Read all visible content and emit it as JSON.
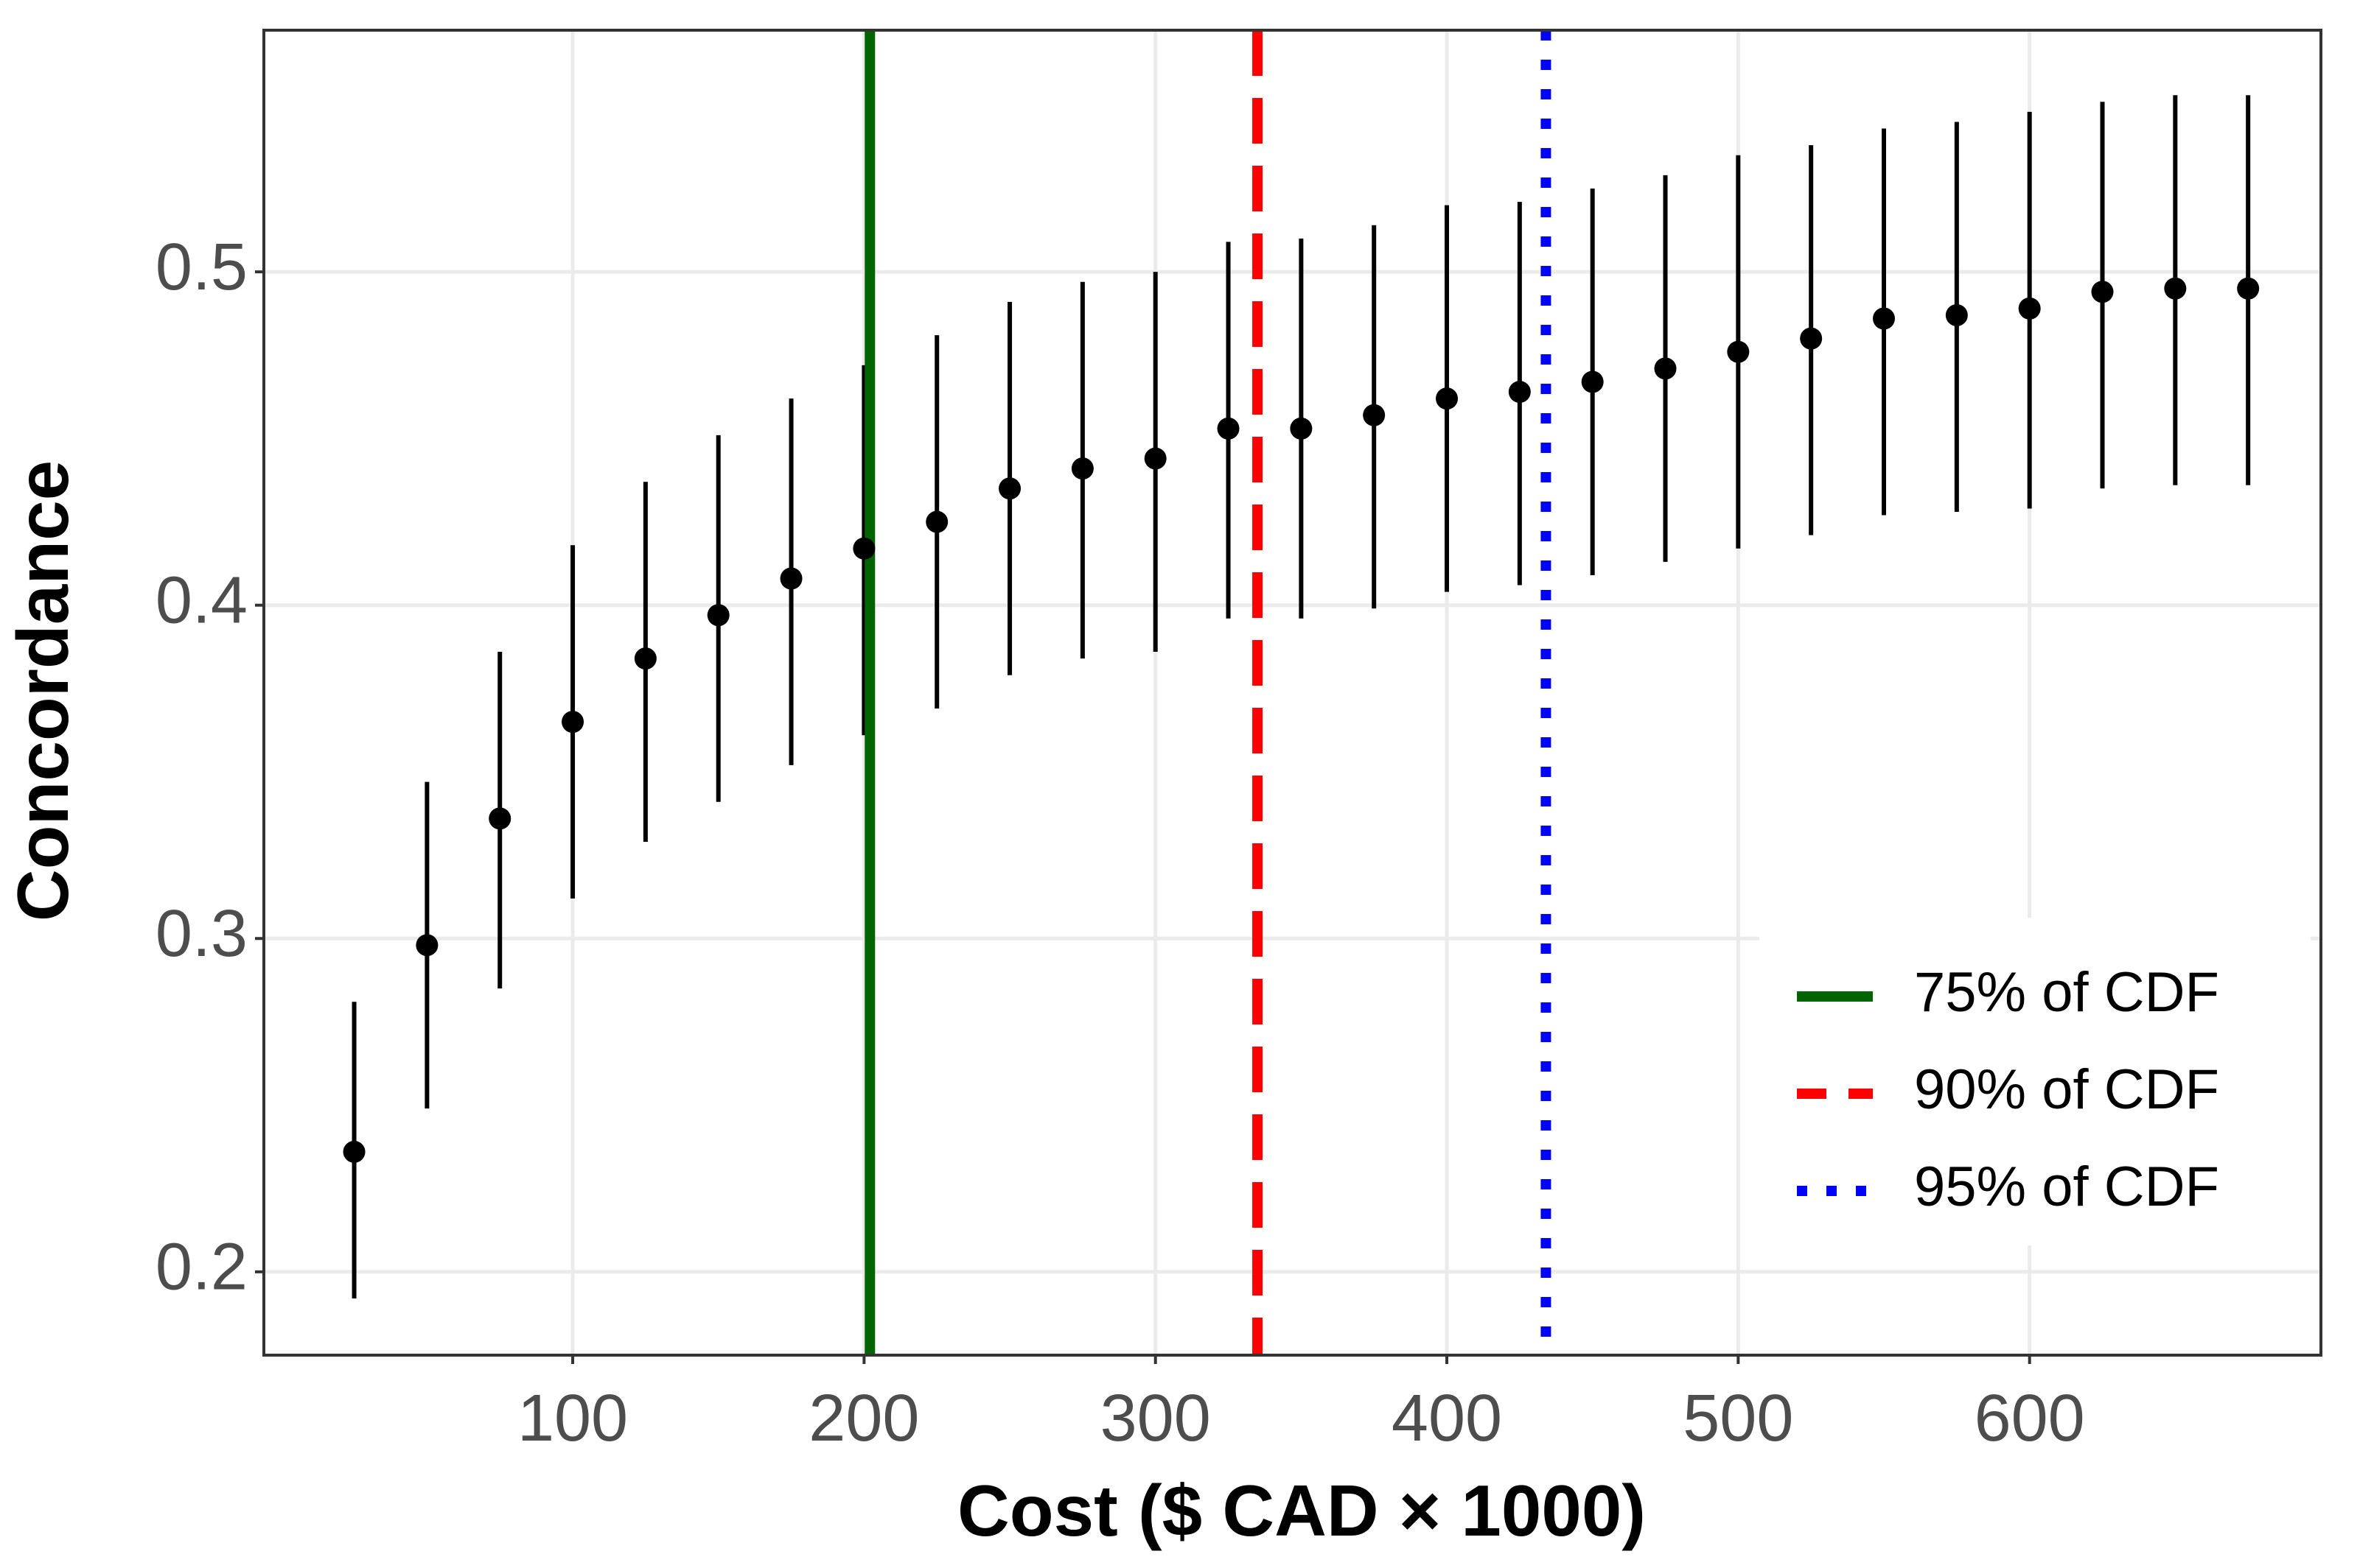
{
  "chart_data": {
    "type": "errorbar",
    "x_label": "Cost ($ CAD × 1000)",
    "y_label": "Concordance",
    "x": [
      25,
      50,
      75,
      100,
      125,
      150,
      175,
      200,
      225,
      250,
      275,
      300,
      325,
      350,
      375,
      400,
      425,
      450,
      475,
      500,
      525,
      550,
      575,
      600,
      625,
      650,
      675
    ],
    "values": [
      0.236,
      0.298,
      0.336,
      0.365,
      0.384,
      0.397,
      0.408,
      0.417,
      0.425,
      0.435,
      0.441,
      0.444,
      0.453,
      0.453,
      0.457,
      0.462,
      0.464,
      0.467,
      0.471,
      0.476,
      0.48,
      0.486,
      0.487,
      0.489,
      0.494,
      0.495,
      0.495
    ],
    "lower": [
      0.192,
      0.249,
      0.285,
      0.312,
      0.329,
      0.341,
      0.352,
      0.361,
      0.369,
      0.379,
      0.384,
      0.386,
      0.396,
      0.396,
      0.399,
      0.404,
      0.406,
      0.409,
      0.413,
      0.417,
      0.421,
      0.427,
      0.428,
      0.429,
      0.435,
      0.436,
      0.436
    ],
    "upper": [
      0.281,
      0.347,
      0.386,
      0.418,
      0.437,
      0.451,
      0.462,
      0.472,
      0.481,
      0.491,
      0.497,
      0.5,
      0.509,
      0.51,
      0.514,
      0.52,
      0.521,
      0.525,
      0.529,
      0.535,
      0.538,
      0.543,
      0.545,
      0.548,
      0.551,
      0.553,
      0.553
    ],
    "color": "#000000",
    "vlines": [
      {
        "name": "75% of CDF",
        "x": 202,
        "color": "#006400",
        "style": "solid"
      },
      {
        "name": "90% of CDF",
        "x": 335,
        "color": "#ff0000",
        "style": "dashed"
      },
      {
        "name": "95% of CDF",
        "x": 434,
        "color": "#0000ff",
        "style": "dotted"
      }
    ],
    "xlim": [
      -6,
      700
    ],
    "xticks": [
      100,
      200,
      300,
      400,
      500,
      600
    ],
    "ylim": [
      0.175,
      0.5725
    ],
    "yticks": [
      0.2,
      0.3,
      0.4,
      0.5
    ],
    "grid": true,
    "legend": "bottom-right"
  }
}
